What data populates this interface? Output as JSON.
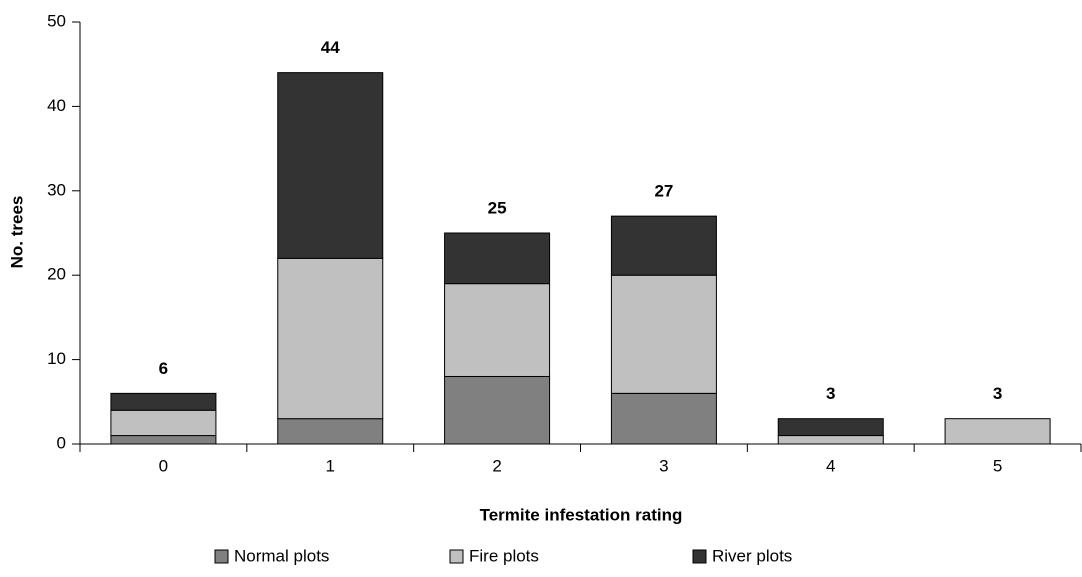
{
  "chart_data": {
    "type": "stacked_bar",
    "categories": [
      "0",
      "1",
      "2",
      "3",
      "4",
      "5"
    ],
    "series": [
      {
        "name": "Normal plots",
        "color": "#808080",
        "values": [
          1,
          3,
          8,
          6,
          0,
          0
        ]
      },
      {
        "name": "Fire plots",
        "color": "#c0c0c0",
        "values": [
          3,
          19,
          11,
          14,
          1,
          3
        ]
      },
      {
        "name": "River plots",
        "color": "#333333",
        "values": [
          2,
          22,
          6,
          7,
          2,
          0
        ]
      }
    ],
    "totals": [
      6,
      44,
      25,
      27,
      3,
      3
    ],
    "x_label": "Termite infestation rating",
    "y_label": "No. trees",
    "ylim": [
      0,
      50
    ],
    "yticks": [
      0,
      10,
      20,
      30,
      40,
      50
    ],
    "grid": false,
    "legend": "bottom"
  }
}
